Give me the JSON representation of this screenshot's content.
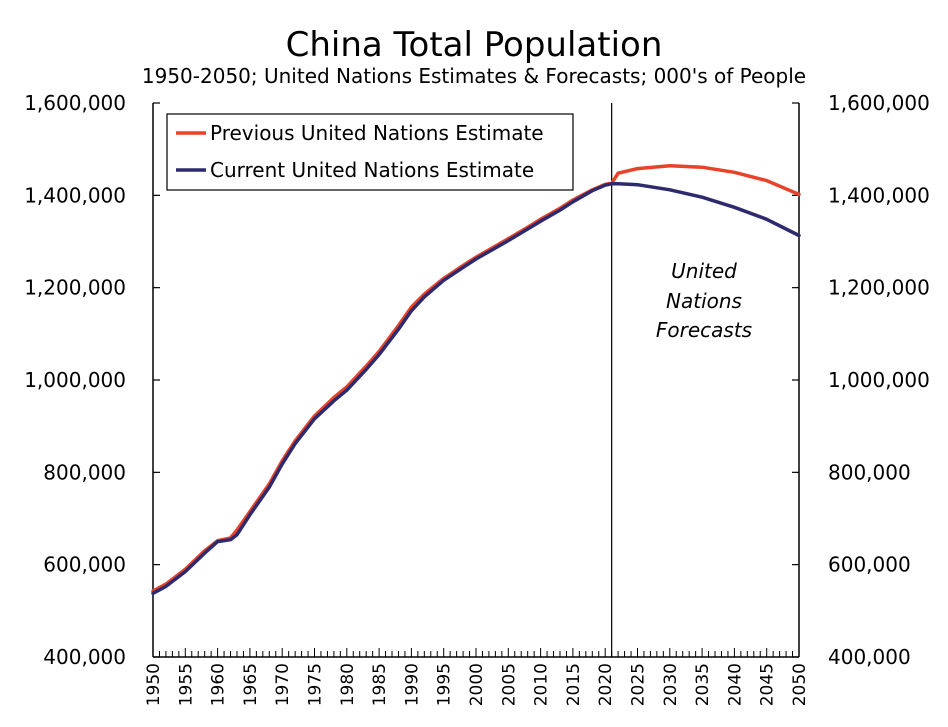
{
  "chart_data": {
    "type": "line",
    "title": "China Total Population",
    "subtitle": "1950-2050; United Nations Estimates & Forecasts; 000's of People",
    "xlabel": "",
    "ylabel": "",
    "xlim": [
      1950,
      2050
    ],
    "ylim": [
      400000,
      1600000
    ],
    "y_ticks": [
      400000,
      600000,
      800000,
      1000000,
      1200000,
      1400000,
      1600000
    ],
    "y_tick_labels": [
      "400,000",
      "600,000",
      "800,000",
      "1,000,000",
      "1,200,000",
      "1,400,000",
      "1,600,000"
    ],
    "x_tick_labels": [
      "1950",
      "1955",
      "1960",
      "1965",
      "1970",
      "1975",
      "1980",
      "1985",
      "1990",
      "1995",
      "2000",
      "2005",
      "2010",
      "2015",
      "2020",
      "2025",
      "2030",
      "2035",
      "2040",
      "2045",
      "2050"
    ],
    "divider_year": 2021,
    "annotation": [
      "United",
      "Nations",
      "Forecasts"
    ],
    "legend_position": "top-left",
    "grid": false,
    "series": [
      {
        "name": "Previous United Nations Estimate",
        "color": "#e8432a",
        "x": [
          1950,
          1952,
          1955,
          1958,
          1960,
          1962,
          1963,
          1965,
          1968,
          1970,
          1972,
          1975,
          1978,
          1980,
          1983,
          1985,
          1988,
          1990,
          1992,
          1995,
          1998,
          2000,
          2003,
          2005,
          2008,
          2010,
          2013,
          2015,
          2018,
          2020,
          2021,
          2022,
          2025,
          2030,
          2035,
          2040,
          2045,
          2050
        ],
        "values": [
          543000,
          558000,
          590000,
          630000,
          652000,
          658000,
          675000,
          715000,
          775000,
          825000,
          868000,
          922000,
          962000,
          985000,
          1030000,
          1062000,
          1118000,
          1158000,
          1186000,
          1220000,
          1248000,
          1266000,
          1290000,
          1306000,
          1331000,
          1348000,
          1372000,
          1390000,
          1412000,
          1424000,
          1426000,
          1448000,
          1458000,
          1464000,
          1461000,
          1450000,
          1432000,
          1402000
        ]
      },
      {
        "name": "Current United Nations Estimate",
        "color": "#2e2a6e",
        "x": [
          1950,
          1952,
          1955,
          1958,
          1960,
          1962,
          1963,
          1965,
          1968,
          1970,
          1972,
          1975,
          1978,
          1980,
          1983,
          1985,
          1988,
          1990,
          1992,
          1995,
          1998,
          2000,
          2003,
          2005,
          2008,
          2010,
          2013,
          2015,
          2018,
          2020,
          2021,
          2022,
          2025,
          2030,
          2035,
          2040,
          2045,
          2050
        ],
        "values": [
          538000,
          553000,
          585000,
          625000,
          650000,
          654000,
          665000,
          708000,
          768000,
          818000,
          862000,
          916000,
          955000,
          978000,
          1023000,
          1055000,
          1110000,
          1150000,
          1180000,
          1216000,
          1244000,
          1262000,
          1286000,
          1302000,
          1327000,
          1344000,
          1368000,
          1386000,
          1410000,
          1422000,
          1425000,
          1425000,
          1423000,
          1412000,
          1396000,
          1374000,
          1348000,
          1313000
        ]
      }
    ]
  }
}
